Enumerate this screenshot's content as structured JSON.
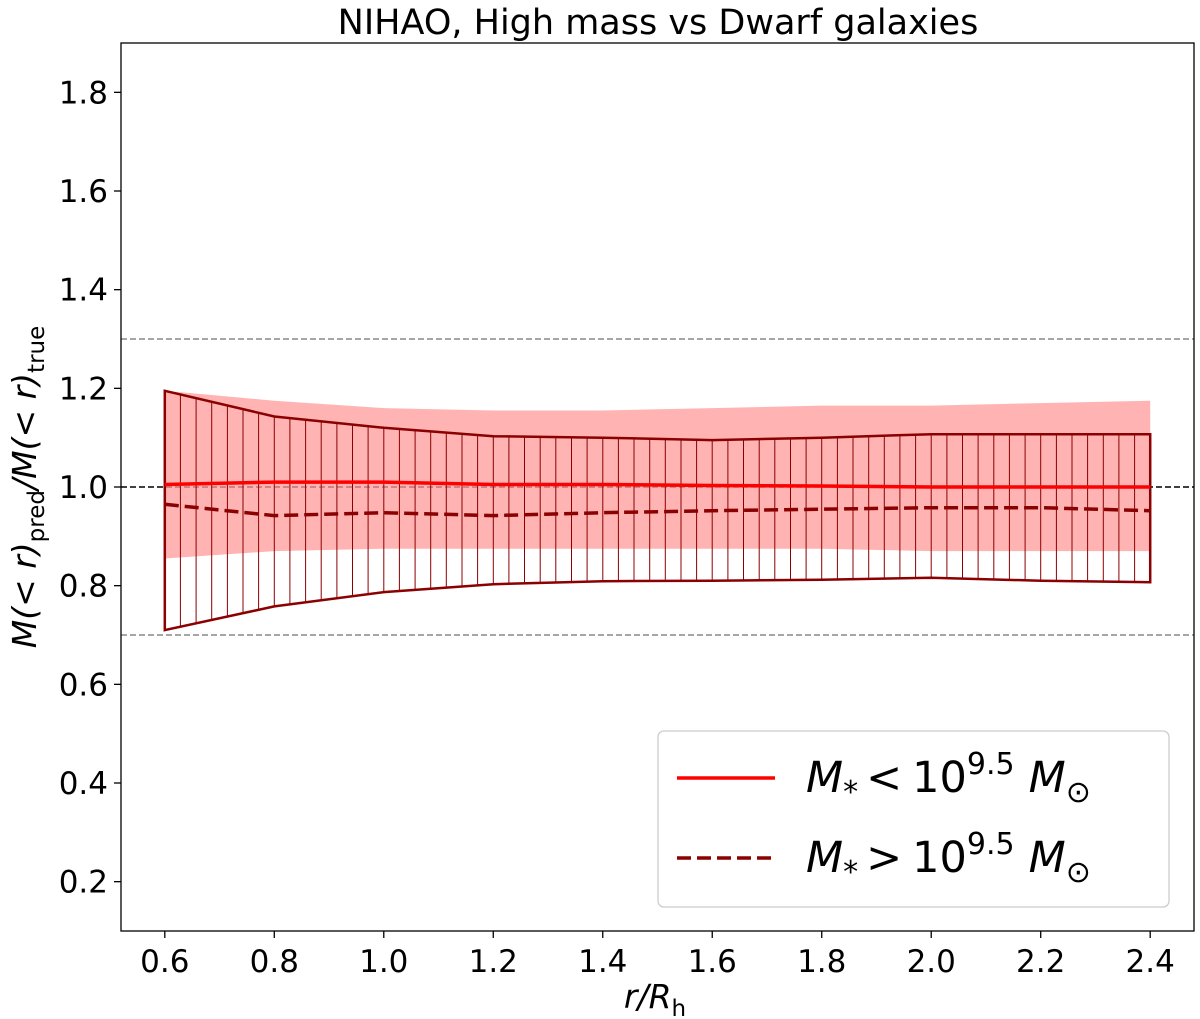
{
  "chart_data": {
    "type": "line",
    "title": "NIHAO, High mass vs Dwarf galaxies",
    "xlabel": {
      "main": "r/R",
      "sub": "h"
    },
    "ylabel": {
      "p1": "M(",
      "p2": "< r)",
      "sub1": "pred",
      "p3": "/M(",
      "p4": "< r)",
      "sub2": "true"
    },
    "xlim": [
      0.52,
      2.48
    ],
    "ylim": [
      0.1,
      1.9
    ],
    "xticks": [
      "0.6",
      "0.8",
      "1.0",
      "1.2",
      "1.4",
      "1.6",
      "1.8",
      "2.0",
      "2.2",
      "2.4"
    ],
    "yticks": [
      "0.2",
      "0.4",
      "0.6",
      "0.8",
      "1.0",
      "1.2",
      "1.4",
      "1.6",
      "1.8"
    ],
    "reference_lines": [
      {
        "y": 1.3,
        "style": "dashed",
        "color": "#888888"
      },
      {
        "y": 1.0,
        "style": "dashed",
        "color": "#000000"
      },
      {
        "y": 0.7,
        "style": "dashed",
        "color": "#888888"
      }
    ],
    "x": [
      0.6,
      0.8,
      1.0,
      1.2,
      1.4,
      1.6,
      1.8,
      2.0,
      2.2,
      2.4
    ],
    "series": [
      {
        "name": "M_* < 10^9.5 M_⊙",
        "color": "#ff0000",
        "line_style": "solid",
        "values": [
          1.005,
          1.01,
          1.01,
          1.005,
          1.005,
          1.003,
          1.002,
          1.0,
          1.0,
          1.0
        ],
        "band_upper": [
          1.195,
          1.175,
          1.16,
          1.155,
          1.155,
          1.16,
          1.165,
          1.165,
          1.17,
          1.175
        ],
        "band_lower": [
          0.855,
          0.87,
          0.875,
          0.875,
          0.875,
          0.875,
          0.875,
          0.87,
          0.87,
          0.87
        ],
        "band_style": "filled",
        "band_color": "#ff9999"
      },
      {
        "name": "M_* > 10^9.5 M_⊙",
        "color": "#8b0000",
        "line_style": "dashed",
        "values": [
          0.965,
          0.942,
          0.948,
          0.942,
          0.948,
          0.952,
          0.955,
          0.958,
          0.958,
          0.952
        ],
        "band_upper": [
          1.195,
          1.143,
          1.12,
          1.103,
          1.1,
          1.095,
          1.1,
          1.107,
          1.107,
          1.107
        ],
        "band_lower": [
          0.71,
          0.758,
          0.787,
          0.803,
          0.809,
          0.81,
          0.812,
          0.816,
          0.81,
          0.807
        ],
        "band_style": "hatched",
        "band_color": "#8b0000"
      }
    ],
    "legend": {
      "placement": "lower-right",
      "entries": [
        {
          "main": "M",
          "sub": "*",
          "op": "<",
          "base": "10",
          "exp": "9.5",
          "unit": "M",
          "unit_sub": "⊙",
          "color": "#ff0000",
          "line_style": "solid"
        },
        {
          "main": "M",
          "sub": "*",
          "op": ">",
          "base": "10",
          "exp": "9.5",
          "unit": "M",
          "unit_sub": "⊙",
          "color": "#8b0000",
          "line_style": "dashed"
        }
      ]
    },
    "grid": false
  }
}
